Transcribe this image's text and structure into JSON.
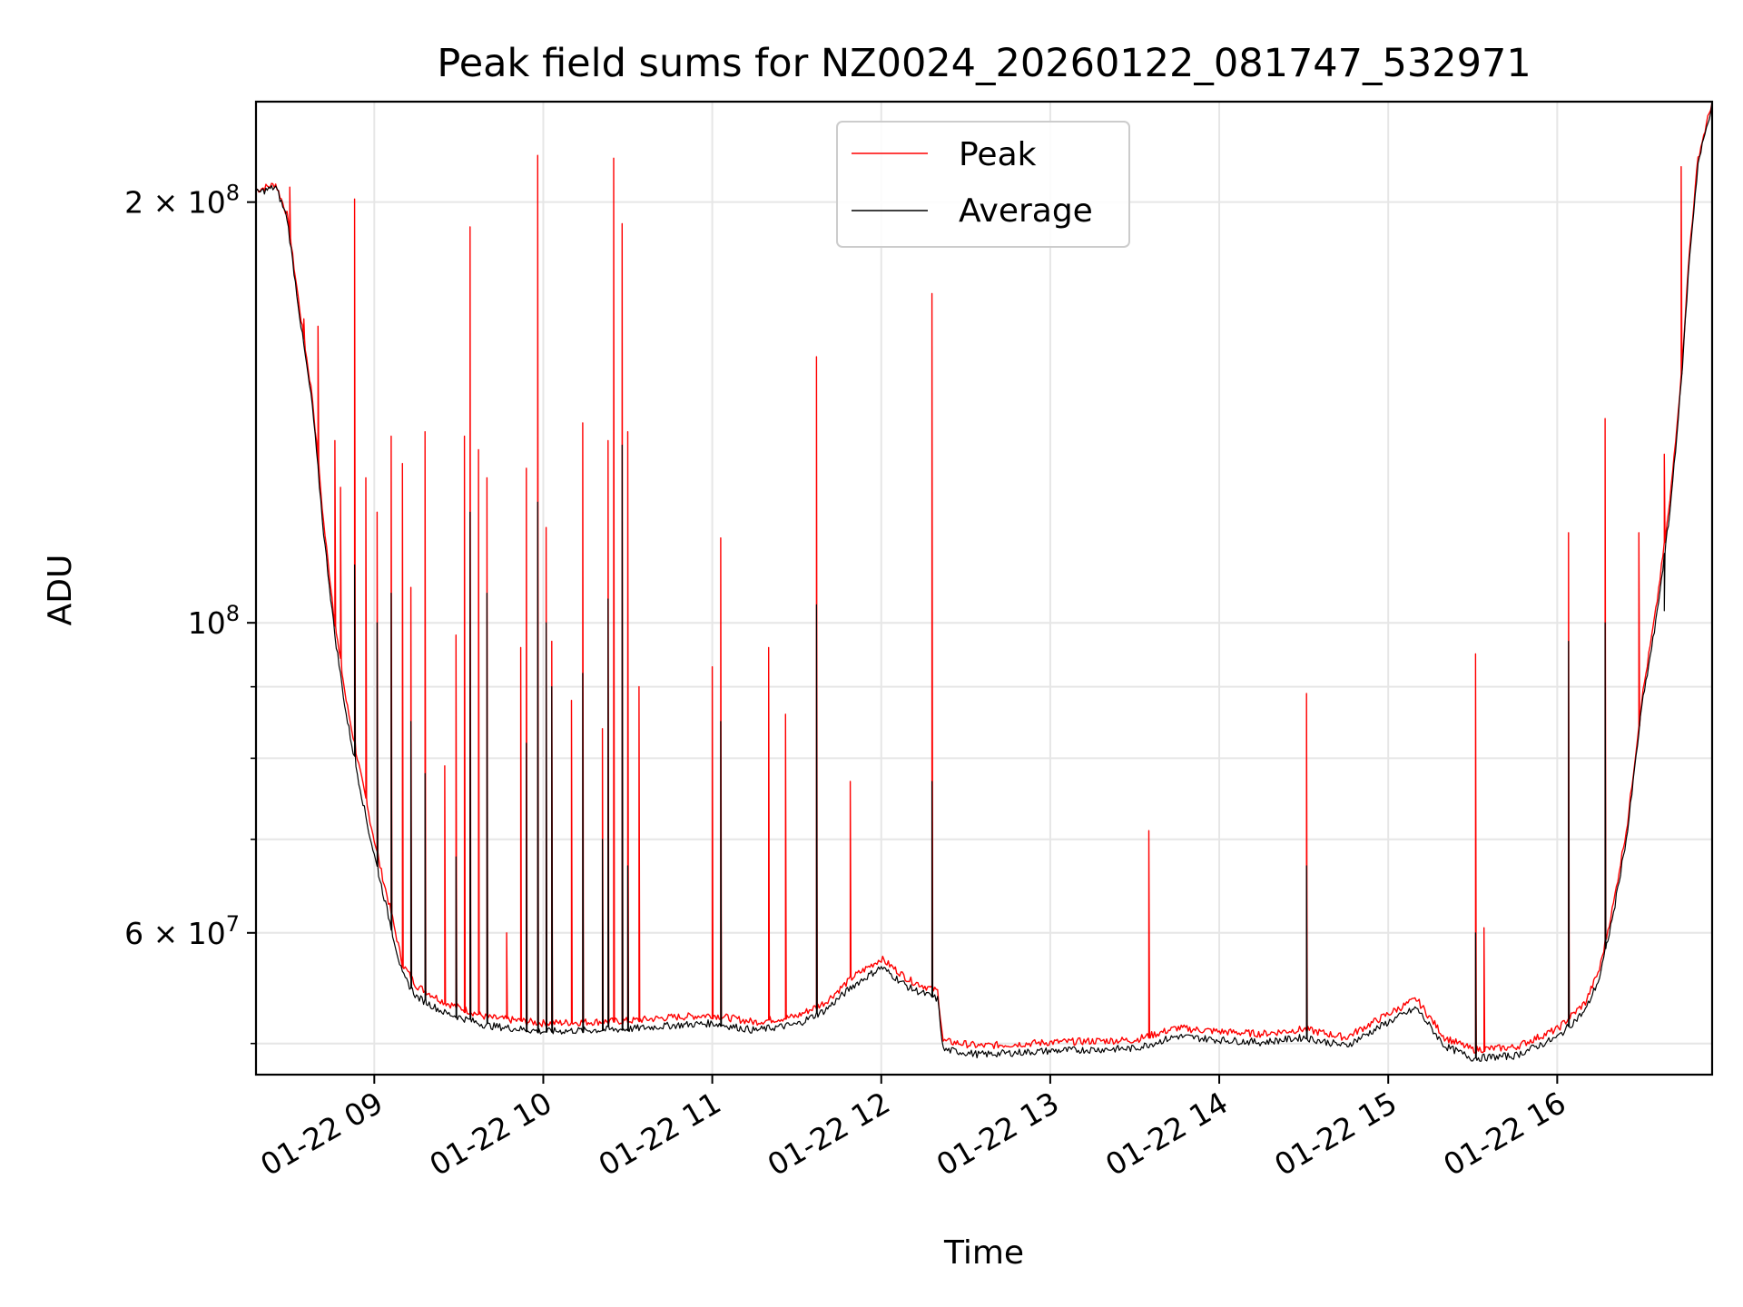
{
  "chart_data": {
    "type": "line",
    "title": "Peak field sums for NZ0024_20260122_081747_532971",
    "xlabel": "Time",
    "ylabel": "ADU",
    "y_scale": "log",
    "ylim": [
      47500000,
      236000000
    ],
    "xlim": [
      "2026-01-22 08:18",
      "2026-01-22 16:55"
    ],
    "grid": true,
    "legend_position": "upper center",
    "x_ticks": [
      {
        "t": "2026-01-22 09:00",
        "label": "01-22 09"
      },
      {
        "t": "2026-01-22 10:00",
        "label": "01-22 10"
      },
      {
        "t": "2026-01-22 11:00",
        "label": "01-22 11"
      },
      {
        "t": "2026-01-22 12:00",
        "label": "01-22 12"
      },
      {
        "t": "2026-01-22 13:00",
        "label": "01-22 13"
      },
      {
        "t": "2026-01-22 14:00",
        "label": "01-22 14"
      },
      {
        "t": "2026-01-22 15:00",
        "label": "01-22 15"
      },
      {
        "t": "2026-01-22 16:00",
        "label": "01-22 16"
      }
    ],
    "y_major_ticks": [
      {
        "value": 60000000,
        "mant": "6",
        "exp": "7",
        "label": "6 × 10^7"
      },
      {
        "value": 100000000,
        "mant": "",
        "exp": "8",
        "label": "10^8"
      },
      {
        "value": 200000000,
        "mant": "2",
        "exp": "8",
        "label": "2 × 10^8"
      }
    ],
    "y_minor_ticks": [
      50000000,
      70000000,
      80000000,
      90000000
    ],
    "series": [
      {
        "name": "Peak",
        "color": "#ff0000",
        "points": [
          [
            "2026-01-22 08:18",
            204000000
          ],
          [
            "2026-01-22 08:25",
            206000000
          ],
          [
            "2026-01-22 08:29",
            196000000
          ],
          [
            "2026-01-22 08:34",
            165000000
          ],
          [
            "2026-01-22 08:38",
            145000000
          ],
          [
            "2026-01-22 08:42",
            118000000
          ],
          [
            "2026-01-22 08:46",
            100000000
          ],
          [
            "2026-01-22 08:50",
            88000000
          ],
          [
            "2026-01-22 08:54",
            80000000
          ],
          [
            "2026-01-22 08:58",
            73000000
          ],
          [
            "2026-01-22 09:02",
            67000000
          ],
          [
            "2026-01-22 09:06",
            62000000
          ],
          [
            "2026-01-22 09:10",
            57000000
          ],
          [
            "2026-01-22 09:15",
            55000000
          ],
          [
            "2026-01-22 09:25",
            53500000
          ],
          [
            "2026-01-22 09:40",
            52200000
          ],
          [
            "2026-01-22 10:00",
            51700000
          ],
          [
            "2026-01-22 10:30",
            51900000
          ],
          [
            "2026-01-22 10:45",
            52200000
          ],
          [
            "2026-01-22 11:00",
            52400000
          ],
          [
            "2026-01-22 11:15",
            51800000
          ],
          [
            "2026-01-22 11:30",
            52300000
          ],
          [
            "2026-01-22 11:40",
            53500000
          ],
          [
            "2026-01-22 11:50",
            55800000
          ],
          [
            "2026-01-22 12:00",
            57500000
          ],
          [
            "2026-01-22 12:10",
            55500000
          ],
          [
            "2026-01-22 12:20",
            54500000
          ],
          [
            "2026-01-22 12:22",
            50200000
          ],
          [
            "2026-01-22 12:35",
            49800000
          ],
          [
            "2026-01-22 13:00",
            50100000
          ],
          [
            "2026-01-22 13:30",
            50300000
          ],
          [
            "2026-01-22 13:45",
            51300000
          ],
          [
            "2026-01-22 14:00",
            51000000
          ],
          [
            "2026-01-22 14:15",
            50800000
          ],
          [
            "2026-01-22 14:30",
            51200000
          ],
          [
            "2026-01-22 14:45",
            50500000
          ],
          [
            "2026-01-22 15:00",
            52500000
          ],
          [
            "2026-01-22 15:10",
            53800000
          ],
          [
            "2026-01-22 15:20",
            50500000
          ],
          [
            "2026-01-22 15:30",
            49500000
          ],
          [
            "2026-01-22 15:45",
            49700000
          ],
          [
            "2026-01-22 16:00",
            51200000
          ],
          [
            "2026-01-22 16:10",
            53500000
          ],
          [
            "2026-01-22 16:15",
            56500000
          ],
          [
            "2026-01-22 16:20",
            63000000
          ],
          [
            "2026-01-22 16:25",
            72000000
          ],
          [
            "2026-01-22 16:30",
            88000000
          ],
          [
            "2026-01-22 16:35",
            102000000
          ],
          [
            "2026-01-22 16:40",
            122000000
          ],
          [
            "2026-01-22 16:44",
            150000000
          ],
          [
            "2026-01-22 16:47",
            185000000
          ],
          [
            "2026-01-22 16:50",
            215000000
          ],
          [
            "2026-01-22 16:55",
            236000000
          ]
        ],
        "spikes": [
          [
            "2026-01-22 08:30",
            205000000
          ],
          [
            "2026-01-22 08:35",
            165000000
          ],
          [
            "2026-01-22 08:40",
            163000000
          ],
          [
            "2026-01-22 08:46",
            135000000
          ],
          [
            "2026-01-22 08:48",
            125000000
          ],
          [
            "2026-01-22 08:53",
            201000000
          ],
          [
            "2026-01-22 08:57",
            127000000
          ],
          [
            "2026-01-22 09:01",
            120000000
          ],
          [
            "2026-01-22 09:06",
            136000000
          ],
          [
            "2026-01-22 09:10",
            130000000
          ],
          [
            "2026-01-22 09:13",
            106000000
          ],
          [
            "2026-01-22 09:18",
            137000000
          ],
          [
            "2026-01-22 09:25",
            79000000
          ],
          [
            "2026-01-22 09:29",
            98000000
          ],
          [
            "2026-01-22 09:32",
            136000000
          ],
          [
            "2026-01-22 09:34",
            192000000
          ],
          [
            "2026-01-22 09:37",
            133000000
          ],
          [
            "2026-01-22 09:40",
            127000000
          ],
          [
            "2026-01-22 09:47",
            60000000
          ],
          [
            "2026-01-22 09:52",
            96000000
          ],
          [
            "2026-01-22 09:54",
            129000000
          ],
          [
            "2026-01-22 09:58",
            216000000
          ],
          [
            "2026-01-22 10:01",
            117000000
          ],
          [
            "2026-01-22 10:03",
            97000000
          ],
          [
            "2026-01-22 10:10",
            88000000
          ],
          [
            "2026-01-22 10:14",
            139000000
          ],
          [
            "2026-01-22 10:21",
            84000000
          ],
          [
            "2026-01-22 10:23",
            135000000
          ],
          [
            "2026-01-22 10:25",
            215000000
          ],
          [
            "2026-01-22 10:28",
            193000000
          ],
          [
            "2026-01-22 10:30",
            137000000
          ],
          [
            "2026-01-22 10:34",
            90000000
          ],
          [
            "2026-01-22 11:00",
            93000000
          ],
          [
            "2026-01-22 11:03",
            115000000
          ],
          [
            "2026-01-22 11:20",
            96000000
          ],
          [
            "2026-01-22 11:26",
            86000000
          ],
          [
            "2026-01-22 11:37",
            155000000
          ],
          [
            "2026-01-22 11:49",
            77000000
          ],
          [
            "2026-01-22 12:18",
            172000000
          ],
          [
            "2026-01-22 13:35",
            71000000
          ],
          [
            "2026-01-22 14:31",
            89000000
          ],
          [
            "2026-01-22 15:31",
            95000000
          ],
          [
            "2026-01-22 15:34",
            60500000
          ],
          [
            "2026-01-22 16:04",
            116000000
          ],
          [
            "2026-01-22 16:17",
            140000000
          ],
          [
            "2026-01-22 16:29",
            116000000
          ],
          [
            "2026-01-22 16:38",
            132000000
          ],
          [
            "2026-01-22 16:44",
            212000000
          ]
        ]
      },
      {
        "name": "Average",
        "color": "#000000",
        "points": [
          [
            "2026-01-22 08:18",
            203000000
          ],
          [
            "2026-01-22 08:25",
            205000000
          ],
          [
            "2026-01-22 08:29",
            195000000
          ],
          [
            "2026-01-22 08:34",
            163000000
          ],
          [
            "2026-01-22 08:38",
            143000000
          ],
          [
            "2026-01-22 08:42",
            116000000
          ],
          [
            "2026-01-22 08:46",
            98000000
          ],
          [
            "2026-01-22 08:50",
            86000000
          ],
          [
            "2026-01-22 08:54",
            78000000
          ],
          [
            "2026-01-22 08:58",
            71000000
          ],
          [
            "2026-01-22 09:02",
            65500000
          ],
          [
            "2026-01-22 09:06",
            60500000
          ],
          [
            "2026-01-22 09:10",
            56000000
          ],
          [
            "2026-01-22 09:15",
            54000000
          ],
          [
            "2026-01-22 09:25",
            52600000
          ],
          [
            "2026-01-22 09:40",
            51500000
          ],
          [
            "2026-01-22 10:00",
            51000000
          ],
          [
            "2026-01-22 10:30",
            51200000
          ],
          [
            "2026-01-22 10:45",
            51500000
          ],
          [
            "2026-01-22 11:00",
            51700000
          ],
          [
            "2026-01-22 11:15",
            51100000
          ],
          [
            "2026-01-22 11:30",
            51600000
          ],
          [
            "2026-01-22 11:40",
            52800000
          ],
          [
            "2026-01-22 11:50",
            55000000
          ],
          [
            "2026-01-22 12:00",
            56700000
          ],
          [
            "2026-01-22 12:10",
            54800000
          ],
          [
            "2026-01-22 12:20",
            53800000
          ],
          [
            "2026-01-22 12:22",
            49500000
          ],
          [
            "2026-01-22 12:35",
            49100000
          ],
          [
            "2026-01-22 13:00",
            49400000
          ],
          [
            "2026-01-22 13:30",
            49600000
          ],
          [
            "2026-01-22 13:45",
            50600000
          ],
          [
            "2026-01-22 14:00",
            50300000
          ],
          [
            "2026-01-22 14:15",
            50100000
          ],
          [
            "2026-01-22 14:30",
            50500000
          ],
          [
            "2026-01-22 14:45",
            49800000
          ],
          [
            "2026-01-22 15:00",
            51800000
          ],
          [
            "2026-01-22 15:10",
            53000000
          ],
          [
            "2026-01-22 15:20",
            49800000
          ],
          [
            "2026-01-22 15:30",
            48800000
          ],
          [
            "2026-01-22 15:45",
            49000000
          ],
          [
            "2026-01-22 16:00",
            50500000
          ],
          [
            "2026-01-22 16:10",
            52800000
          ],
          [
            "2026-01-22 16:15",
            55700000
          ],
          [
            "2026-01-22 16:20",
            62000000
          ],
          [
            "2026-01-22 16:25",
            71000000
          ],
          [
            "2026-01-22 16:30",
            87000000
          ],
          [
            "2026-01-22 16:35",
            100000000
          ],
          [
            "2026-01-22 16:40",
            120000000
          ],
          [
            "2026-01-22 16:44",
            148000000
          ],
          [
            "2026-01-22 16:47",
            183000000
          ],
          [
            "2026-01-22 16:50",
            213000000
          ],
          [
            "2026-01-22 16:55",
            235000000
          ]
        ],
        "spikes": [
          [
            "2026-01-22 08:53",
            110000000
          ],
          [
            "2026-01-22 09:01",
            100000000
          ],
          [
            "2026-01-22 09:06",
            105000000
          ],
          [
            "2026-01-22 09:13",
            85000000
          ],
          [
            "2026-01-22 09:18",
            78000000
          ],
          [
            "2026-01-22 09:29",
            68000000
          ],
          [
            "2026-01-22 09:34",
            120000000
          ],
          [
            "2026-01-22 09:40",
            105000000
          ],
          [
            "2026-01-22 09:54",
            82000000
          ],
          [
            "2026-01-22 09:58",
            122000000
          ],
          [
            "2026-01-22 10:01",
            100000000
          ],
          [
            "2026-01-22 10:03",
            90000000
          ],
          [
            "2026-01-22 10:14",
            92000000
          ],
          [
            "2026-01-22 10:21",
            70000000
          ],
          [
            "2026-01-22 10:23",
            104000000
          ],
          [
            "2026-01-22 10:28",
            134000000
          ],
          [
            "2026-01-22 10:30",
            67000000
          ],
          [
            "2026-01-22 11:03",
            85000000
          ],
          [
            "2026-01-22 11:37",
            103000000
          ],
          [
            "2026-01-22 12:18",
            77000000
          ],
          [
            "2026-01-22 14:31",
            67000000
          ],
          [
            "2026-01-22 15:31",
            60000000
          ],
          [
            "2026-01-22 16:04",
            97000000
          ],
          [
            "2026-01-22 16:17",
            100000000
          ],
          [
            "2026-01-22 16:38",
            102000000
          ]
        ]
      }
    ]
  }
}
